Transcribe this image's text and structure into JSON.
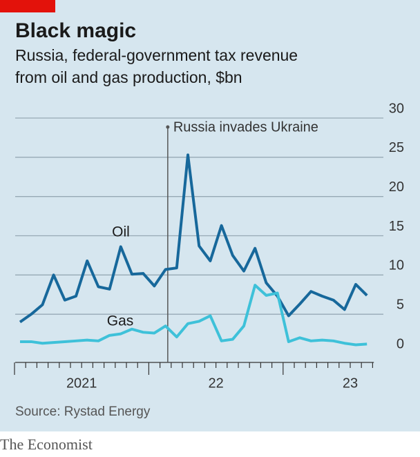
{
  "chart_data": {
    "type": "line",
    "title": "Black magic",
    "subtitle": "Russia, federal-government tax revenue from oil and gas production, $bn",
    "source": "Source: Rystad Energy",
    "brand": "The Economist",
    "categories": [
      null,
      null,
      null,
      null,
      null,
      null,
      null,
      null,
      null,
      null,
      null,
      null,
      null,
      null,
      null,
      null,
      null,
      null,
      null,
      null,
      null,
      null,
      null,
      null,
      null,
      null,
      null,
      null,
      null,
      null,
      null,
      null
    ],
    "xtick_labels": [
      "2021",
      "22",
      "23"
    ],
    "series": [
      {
        "name": "Oil",
        "color": "#17689b",
        "values": [
          4.0,
          5.0,
          6.2,
          10.0,
          6.8,
          7.3,
          11.8,
          8.5,
          8.2,
          13.6,
          10.1,
          10.2,
          8.6,
          10.7,
          10.9,
          25.3,
          13.7,
          11.8,
          16.3,
          12.5,
          10.5,
          13.4,
          9.0,
          7.3,
          4.8,
          6.3,
          7.9,
          7.3,
          6.8,
          5.6,
          8.8,
          7.4
        ]
      },
      {
        "name": "Gas",
        "color": "#3ec1d9",
        "values": [
          1.5,
          1.5,
          1.3,
          1.4,
          1.5,
          1.6,
          1.7,
          1.6,
          2.3,
          2.5,
          3.1,
          2.7,
          2.6,
          3.5,
          2.1,
          3.8,
          4.1,
          4.8,
          1.6,
          1.8,
          3.5,
          8.7,
          7.4,
          7.7,
          1.5,
          2.0,
          1.6,
          1.7,
          1.6,
          1.3,
          1.1,
          1.2
        ]
      }
    ],
    "annotations": [
      {
        "text": "Russia invades Ukraine",
        "x": 13.2
      }
    ],
    "ylim": [
      0,
      30
    ],
    "yticks": [
      0,
      5,
      10,
      15,
      20,
      25,
      30
    ],
    "grid": true
  }
}
